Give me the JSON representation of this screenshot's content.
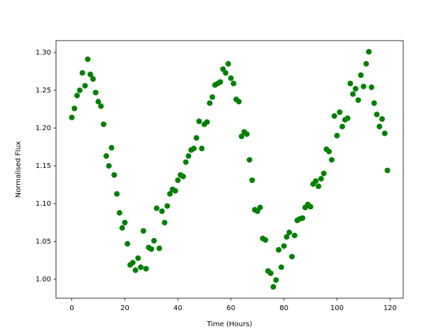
{
  "chart_data": {
    "type": "scatter",
    "x_label": "Time (Hours)",
    "y_label": "Normalised Flux",
    "x": [
      0,
      1,
      2,
      3,
      4,
      5,
      6,
      7,
      8,
      9,
      10,
      11,
      12,
      13,
      14,
      15,
      16,
      17,
      18,
      19,
      20,
      21,
      22,
      23,
      24,
      25,
      26,
      27,
      28,
      29,
      30,
      31,
      32,
      33,
      34,
      35,
      36,
      37,
      38,
      39,
      40,
      41,
      42,
      43,
      44,
      45,
      46,
      47,
      48,
      49,
      50,
      51,
      52,
      53,
      54,
      55,
      56,
      57,
      58,
      59,
      60,
      61,
      62,
      63,
      64,
      65,
      66,
      67,
      68,
      69,
      70,
      71,
      72,
      73,
      74,
      75,
      76,
      77,
      78,
      79,
      80,
      81,
      82,
      83,
      84,
      85,
      86,
      87,
      88,
      89,
      90,
      91,
      92,
      93,
      94,
      95,
      96,
      97,
      98,
      99,
      100,
      101,
      102,
      103,
      104,
      105,
      106,
      107,
      108,
      109,
      110,
      111,
      112,
      113,
      114,
      115,
      116,
      117,
      118,
      119
    ],
    "values": [
      1.214,
      1.226,
      1.243,
      1.25,
      1.273,
      1.256,
      1.291,
      1.271,
      1.265,
      1.247,
      1.235,
      1.229,
      1.205,
      1.163,
      1.15,
      1.174,
      1.138,
      1.113,
      1.088,
      1.068,
      1.075,
      1.047,
      1.019,
      1.022,
      1.012,
      1.028,
      1.016,
      1.064,
      1.014,
      1.042,
      1.04,
      1.051,
      1.094,
      1.041,
      1.09,
      1.075,
      1.097,
      1.113,
      1.119,
      1.117,
      1.131,
      1.138,
      1.136,
      1.155,
      1.163,
      1.171,
      1.173,
      1.187,
      1.209,
      1.173,
      1.205,
      1.208,
      1.233,
      1.241,
      1.257,
      1.259,
      1.261,
      1.278,
      1.273,
      1.285,
      1.266,
      1.259,
      1.238,
      1.235,
      1.189,
      1.195,
      1.192,
      1.158,
      1.131,
      1.092,
      1.09,
      1.095,
      1.054,
      1.052,
      1.011,
      1.008,
      0.99,
      0.999,
      1.039,
      1.016,
      1.044,
      1.056,
      1.062,
      1.03,
      1.058,
      1.078,
      1.08,
      1.081,
      1.095,
      1.099,
      1.096,
      1.126,
      1.13,
      1.123,
      1.133,
      1.14,
      1.172,
      1.169,
      1.158,
      1.216,
      1.19,
      1.221,
      1.202,
      1.211,
      1.213,
      1.259,
      1.245,
      1.252,
      1.237,
      1.27,
      1.255,
      1.285,
      1.301,
      1.254,
      1.233,
      1.218,
      1.202,
      1.212,
      1.193,
      1.144
    ],
    "color": "#008000",
    "xlim": [
      -5.95,
      124.95
    ],
    "xticks": [
      0,
      20,
      40,
      60,
      80,
      100,
      120
    ],
    "ylim": [
      0.975,
      1.3157
    ],
    "yticks": [
      {
        "value": 1.0,
        "label": "1.00"
      },
      {
        "value": 1.05,
        "label": "1.05"
      },
      {
        "value": 1.1,
        "label": "1.10"
      },
      {
        "value": 1.15,
        "label": "1.15"
      },
      {
        "value": 1.2,
        "label": "1.20"
      },
      {
        "value": 1.25,
        "label": "1.25"
      },
      {
        "value": 1.3,
        "label": "1.30"
      }
    ]
  }
}
